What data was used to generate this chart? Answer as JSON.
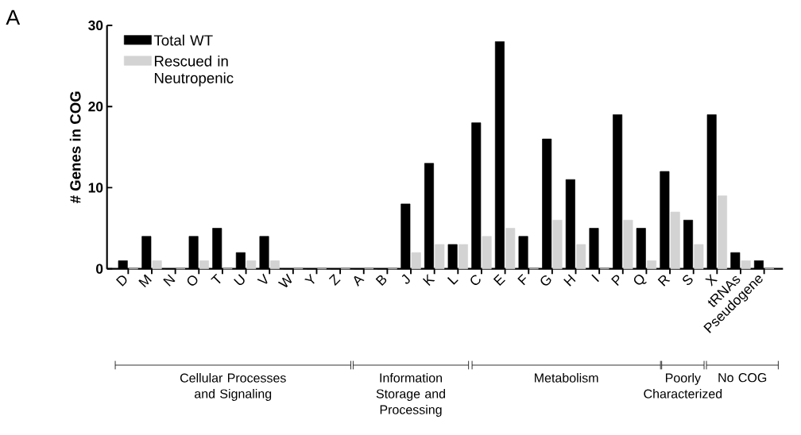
{
  "chart_data": {
    "type": "bar",
    "ylabel": "# Genes in COG",
    "categories": [
      "D",
      "M",
      "N",
      "O",
      "T",
      "U",
      "V",
      "W",
      "Y",
      "Z",
      "A",
      "B",
      "J",
      "K",
      "L",
      "C",
      "E",
      "F",
      "G",
      "H",
      "I",
      "P",
      "Q",
      "R",
      "S",
      "X",
      "tRNAs",
      "Pseudogene"
    ],
    "series": [
      {
        "name": "Total WT",
        "color": "#000000",
        "values": [
          1,
          4,
          0,
          4,
          5,
          2,
          4,
          0,
          0,
          0,
          0,
          0,
          8,
          13,
          3,
          18,
          28,
          4,
          16,
          11,
          5,
          19,
          5,
          12,
          6,
          19,
          2,
          1
        ]
      },
      {
        "name": "Rescued in Neutropenic",
        "color": "#d3d3d3",
        "values": [
          0,
          1,
          0,
          1,
          0,
          1,
          1,
          0,
          0,
          0,
          0,
          0,
          2,
          3,
          3,
          4,
          5,
          0,
          6,
          3,
          0,
          6,
          1,
          7,
          3,
          9,
          1,
          0
        ]
      }
    ],
    "ylim": [
      0,
      30
    ],
    "yticks": [
      0,
      10,
      20,
      30
    ],
    "grid": false,
    "legend": "top left",
    "annotations": [
      "A",
      "Cellular Processes and Signaling",
      "Information Storage and Processing",
      "Metabolism",
      "Poorly Characterized",
      "No COG"
    ]
  }
}
